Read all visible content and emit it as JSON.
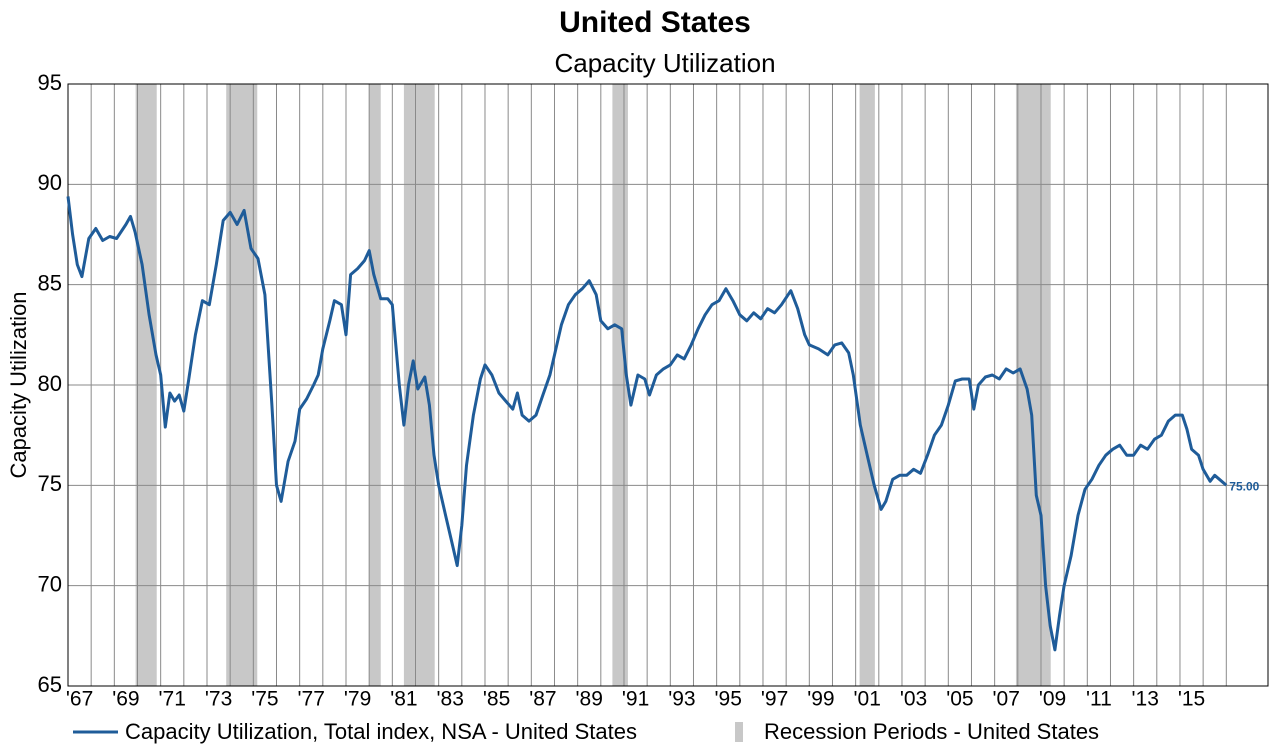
{
  "chart_data": {
    "type": "line",
    "title": "United States",
    "subtitle": "Capacity Utilization",
    "y_label": "Capacity Utilization",
    "ylim": [
      65,
      95
    ],
    "yticks": [
      65,
      70,
      75,
      80,
      85,
      90,
      95
    ],
    "xlim": [
      1967.0,
      2018.8
    ],
    "xticks": [
      {
        "value": 1967.5,
        "label": "'67"
      },
      {
        "value": 1969.5,
        "label": "'69"
      },
      {
        "value": 1971.5,
        "label": "'71"
      },
      {
        "value": 1973.5,
        "label": "'73"
      },
      {
        "value": 1975.5,
        "label": "'75"
      },
      {
        "value": 1977.5,
        "label": "'77"
      },
      {
        "value": 1979.5,
        "label": "'79"
      },
      {
        "value": 1981.5,
        "label": "'81"
      },
      {
        "value": 1983.5,
        "label": "'83"
      },
      {
        "value": 1985.5,
        "label": "'85"
      },
      {
        "value": 1987.5,
        "label": "'87"
      },
      {
        "value": 1989.5,
        "label": "'89"
      },
      {
        "value": 1991.5,
        "label": "'91"
      },
      {
        "value": 1993.5,
        "label": "'93"
      },
      {
        "value": 1995.5,
        "label": "'95"
      },
      {
        "value": 1997.5,
        "label": "'97"
      },
      {
        "value": 1999.5,
        "label": "'99"
      },
      {
        "value": 2001.5,
        "label": "'01"
      },
      {
        "value": 2003.5,
        "label": "'03"
      },
      {
        "value": 2005.5,
        "label": "'05"
      },
      {
        "value": 2007.5,
        "label": "'07"
      },
      {
        "value": 2009.5,
        "label": "'09"
      },
      {
        "value": 2011.5,
        "label": "'11"
      },
      {
        "value": 2013.5,
        "label": "'13"
      },
      {
        "value": 2015.5,
        "label": "'15"
      }
    ],
    "grid": true,
    "recessions": {
      "name": "Recession Periods - United States",
      "color": "#c8c8c8",
      "ranges": [
        [
          1969.92,
          1970.83
        ],
        [
          1973.83,
          1975.17
        ],
        [
          1980.0,
          1980.5
        ],
        [
          1981.5,
          1982.83
        ],
        [
          1990.5,
          1991.17
        ],
        [
          2001.17,
          2001.83
        ],
        [
          2007.92,
          2009.42
        ]
      ]
    },
    "x": [
      1967.0,
      1967.2,
      1967.4,
      1967.6,
      1967.9,
      1968.2,
      1968.5,
      1968.8,
      1969.1,
      1969.5,
      1969.7,
      1969.9,
      1970.2,
      1970.5,
      1970.8,
      1971.0,
      1971.2,
      1971.4,
      1971.6,
      1971.8,
      1972.0,
      1972.2,
      1972.5,
      1972.8,
      1973.1,
      1973.4,
      1973.7,
      1974.0,
      1974.3,
      1974.6,
      1974.9,
      1975.2,
      1975.5,
      1975.8,
      1976.0,
      1976.2,
      1976.5,
      1976.8,
      1977.0,
      1977.3,
      1977.6,
      1977.8,
      1978.0,
      1978.3,
      1978.5,
      1978.8,
      1979.0,
      1979.2,
      1979.5,
      1979.8,
      1980.0,
      1980.2,
      1980.5,
      1980.8,
      1981.0,
      1981.3,
      1981.5,
      1981.7,
      1981.9,
      1982.1,
      1982.4,
      1982.6,
      1982.8,
      1983.0,
      1983.3,
      1983.6,
      1983.8,
      1984.0,
      1984.2,
      1984.5,
      1984.8,
      1985.0,
      1985.3,
      1985.6,
      1985.9,
      1986.2,
      1986.4,
      1986.6,
      1986.9,
      1987.2,
      1987.5,
      1987.8,
      1988.0,
      1988.3,
      1988.6,
      1988.9,
      1989.2,
      1989.5,
      1989.8,
      1990.0,
      1990.3,
      1990.6,
      1990.9,
      1991.1,
      1991.3,
      1991.6,
      1991.9,
      1992.1,
      1992.4,
      1992.7,
      1993.0,
      1993.3,
      1993.6,
      1993.9,
      1994.2,
      1994.5,
      1994.8,
      1995.1,
      1995.4,
      1995.7,
      1996.0,
      1996.3,
      1996.6,
      1996.9,
      1997.2,
      1997.5,
      1997.8,
      1998.2,
      1998.5,
      1998.8,
      1999.0,
      1999.4,
      1999.8,
      2000.1,
      2000.4,
      2000.7,
      2000.9,
      2001.2,
      2001.5,
      2001.8,
      2002.1,
      2002.3,
      2002.6,
      2002.9,
      2003.2,
      2003.5,
      2003.8,
      2004.1,
      2004.4,
      2004.7,
      2005.0,
      2005.3,
      2005.6,
      2005.9,
      2006.1,
      2006.3,
      2006.6,
      2006.9,
      2007.2,
      2007.5,
      2007.8,
      2008.1,
      2008.4,
      2008.6,
      2008.8,
      2009.0,
      2009.2,
      2009.4,
      2009.6,
      2009.8,
      2010.0,
      2010.3,
      2010.6,
      2010.9,
      2011.2,
      2011.5,
      2011.8,
      2012.1,
      2012.4,
      2012.7,
      2013.0,
      2013.3,
      2013.6,
      2013.9,
      2014.2,
      2014.5,
      2014.8,
      2015.1,
      2015.3,
      2015.5,
      2015.8,
      2016.0,
      2016.3,
      2016.5,
      2016.8,
      2017.0
    ],
    "series": [
      {
        "name": "Capacity Utilization, Total index, NSA - United States",
        "color": "#1f5c99",
        "values": [
          89.4,
          87.5,
          86.0,
          85.4,
          87.3,
          87.8,
          87.2,
          87.4,
          87.3,
          88.0,
          88.4,
          87.6,
          86.0,
          83.5,
          81.5,
          80.5,
          77.9,
          79.6,
          79.2,
          79.5,
          78.7,
          80.2,
          82.5,
          84.2,
          84.0,
          86.0,
          88.2,
          88.6,
          88.0,
          88.7,
          86.8,
          86.3,
          84.5,
          79.0,
          75.0,
          74.2,
          76.2,
          77.2,
          78.8,
          79.3,
          80.0,
          80.5,
          81.8,
          83.2,
          84.2,
          84.0,
          82.5,
          85.5,
          85.8,
          86.2,
          86.7,
          85.5,
          84.3,
          84.3,
          84.0,
          80.0,
          78.0,
          80.0,
          81.2,
          79.8,
          80.4,
          79.0,
          76.5,
          75.0,
          73.5,
          72.0,
          71.0,
          73.0,
          76.0,
          78.5,
          80.3,
          81.0,
          80.5,
          79.6,
          79.2,
          78.8,
          79.6,
          78.5,
          78.2,
          78.5,
          79.5,
          80.5,
          81.5,
          83.0,
          84.0,
          84.5,
          84.8,
          85.2,
          84.5,
          83.2,
          82.8,
          83.0,
          82.8,
          80.5,
          79.0,
          80.5,
          80.3,
          79.5,
          80.5,
          80.8,
          81.0,
          81.5,
          81.3,
          82.0,
          82.8,
          83.5,
          84.0,
          84.2,
          84.8,
          84.2,
          83.5,
          83.2,
          83.6,
          83.3,
          83.8,
          83.6,
          84.0,
          84.7,
          83.8,
          82.5,
          82.0,
          81.8,
          81.5,
          82.0,
          82.1,
          81.6,
          80.5,
          78.0,
          76.5,
          75.0,
          73.8,
          74.2,
          75.3,
          75.5,
          75.5,
          75.8,
          75.6,
          76.5,
          77.5,
          78.0,
          79.0,
          80.2,
          80.3,
          80.3,
          78.8,
          80.0,
          80.4,
          80.5,
          80.3,
          80.8,
          80.6,
          80.8,
          79.8,
          78.5,
          74.5,
          73.5,
          70.0,
          68.0,
          66.8,
          68.5,
          70.0,
          71.5,
          73.5,
          74.8,
          75.3,
          76.0,
          76.5,
          76.8,
          77.0,
          76.5,
          76.5,
          77.0,
          76.8,
          77.3,
          77.5,
          78.2,
          78.5,
          78.5,
          77.8,
          76.8,
          76.5,
          75.8,
          75.2,
          75.5,
          75.2,
          75.0
        ],
        "last_value_label": "75.00"
      }
    ]
  }
}
